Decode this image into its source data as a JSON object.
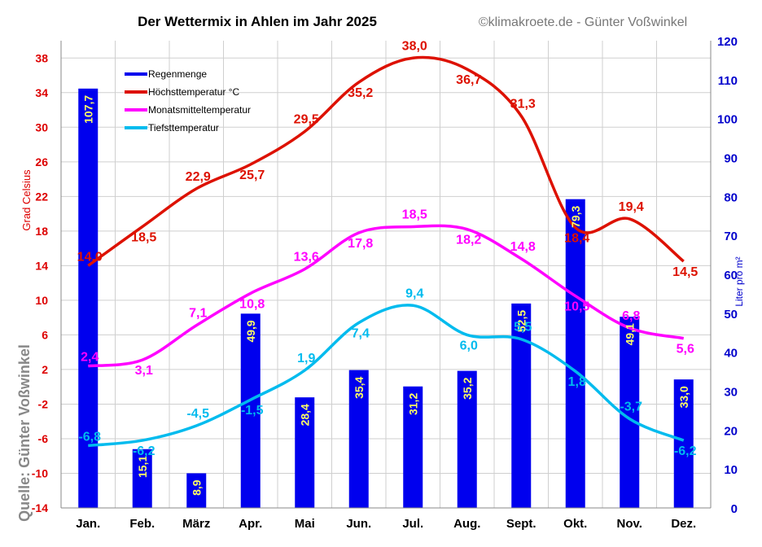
{
  "chart_data": {
    "type": "bar+line",
    "title": "Der Wettermix in Ahlen im Jahr 2025",
    "copyright": "©klimakroete.de - Günter Voßwinkel",
    "source_label": "Quelle: Günter Voßwinkel",
    "categories": [
      "Jan.",
      "Feb.",
      "März",
      "Apr.",
      "Mai",
      "Jun.",
      "Jul.",
      "Aug.",
      "Sept.",
      "Okt.",
      "Nov.",
      "Dez."
    ],
    "left_axis": {
      "label": "Grad Celsius",
      "ylim": [
        -14,
        40
      ],
      "ticks": [
        "-14",
        "-10",
        "-6",
        "-2",
        "2",
        "6",
        "10",
        "14",
        "18",
        "22",
        "26",
        "30",
        "34",
        "38"
      ],
      "color": "#dd0000"
    },
    "right_axis": {
      "label": "Liter pro m²",
      "ylim": [
        0,
        120
      ],
      "ticks": [
        "0",
        "10",
        "20",
        "30",
        "40",
        "50",
        "60",
        "70",
        "80",
        "90",
        "100",
        "110",
        "120"
      ],
      "color": "#0000cc"
    },
    "bars": {
      "name": "Regenmenge",
      "color": "#0000ee",
      "label_color": "#ffff66",
      "values": [
        107.7,
        15.1,
        8.9,
        49.9,
        28.4,
        35.4,
        31.2,
        35.2,
        52.5,
        79.3,
        49.1,
        33.0
      ],
      "labels": [
        "107,7",
        "15,1",
        "8,9",
        "49,9",
        "28,4",
        "35,4",
        "31,2",
        "35,2",
        "52,5",
        "79,3",
        "49,1",
        "33,0"
      ]
    },
    "series": [
      {
        "name": "Höchsttemperatur °C",
        "color": "#dd1100",
        "values": [
          14.0,
          18.5,
          22.9,
          25.7,
          29.5,
          35.2,
          38.0,
          36.7,
          31.3,
          18.4,
          19.4,
          14.5
        ],
        "labels": [
          "14,0",
          "18,5",
          "22,9",
          "25,7",
          "29,5",
          "35,2",
          "38,0",
          "36,7",
          "31,3",
          "18,4",
          "19,4",
          "14,5"
        ]
      },
      {
        "name": "Monatsmitteltemperatur",
        "color": "#ff00ff",
        "values": [
          2.4,
          3.1,
          7.1,
          10.8,
          13.6,
          17.8,
          18.5,
          18.2,
          14.8,
          10.5,
          6.8,
          5.6
        ],
        "labels": [
          "2,4",
          "3,1",
          "7,1",
          "10,8",
          "13,6",
          "17,8",
          "18,5",
          "18,2",
          "14,8",
          "10,5",
          "6,8",
          "5,6"
        ]
      },
      {
        "name": "Tiefsttemperatur",
        "color": "#00bbee",
        "values": [
          -6.8,
          -6.2,
          -4.5,
          -1.5,
          1.9,
          7.4,
          9.4,
          6.0,
          5.5,
          1.8,
          -3.7,
          -6.2
        ],
        "labels": [
          "-6,8",
          "-6,2",
          "-4,5",
          "-1,5",
          "1,9",
          "7,4",
          "9,4",
          "6,0",
          "5,5",
          "1,8",
          "-3,7",
          "-6,2"
        ]
      }
    ],
    "grid": true,
    "legend_position": "top-left"
  }
}
